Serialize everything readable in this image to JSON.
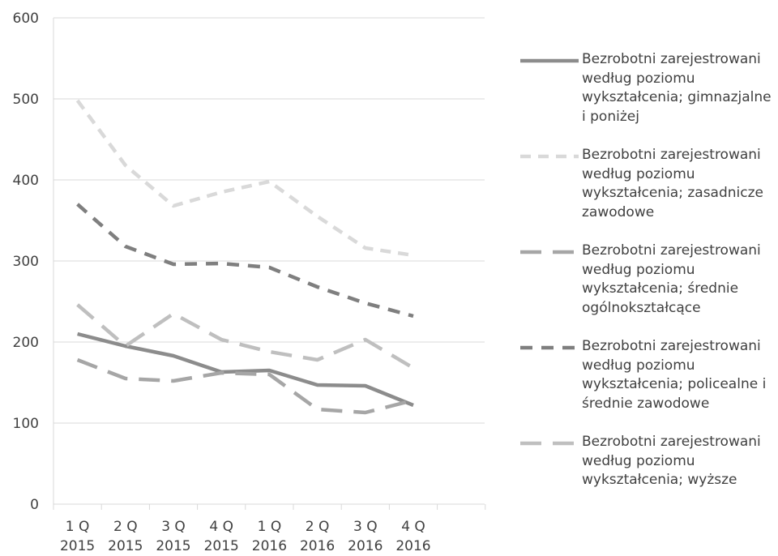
{
  "chart_data": {
    "type": "line",
    "categories": [
      [
        "1 Q",
        "2015"
      ],
      [
        "2 Q",
        "2015"
      ],
      [
        "3 Q",
        "2015"
      ],
      [
        "4 Q",
        "2015"
      ],
      [
        "1 Q",
        "2016"
      ],
      [
        "2 Q",
        "2016"
      ],
      [
        "3 Q",
        "2016"
      ],
      [
        "4 Q",
        "2016"
      ]
    ],
    "ylim": [
      0,
      600
    ],
    "yticks": [
      0,
      100,
      200,
      300,
      400,
      500,
      600
    ],
    "grid": true,
    "legend_position": "right",
    "series": [
      {
        "name": "Bezrobotni zarejestrowani według poziomu wykształcenia; gimnazjalne i poniżej",
        "values": [
          210,
          195,
          183,
          163,
          165,
          147,
          146,
          122
        ],
        "color": "#8c8c8c",
        "dash": "solid"
      },
      {
        "name": "Bezrobotni zarejestrowani według poziomu wykształcenia; zasadnicze zawodowe",
        "values": [
          498,
          418,
          368,
          385,
          398,
          355,
          316,
          307
        ],
        "color": "#d9d9d9",
        "dash": "short-dash"
      },
      {
        "name": "Bezrobotni zarejestrowani według poziomu wykształcenia; średnie ogólnokształcące",
        "values": [
          178,
          155,
          152,
          162,
          160,
          117,
          113,
          128
        ],
        "color": "#a6a6a6",
        "dash": "long-dash"
      },
      {
        "name": "Bezrobotni zarejestrowani według poziomu wykształcenia; policealne i średnie zawodowe",
        "values": [
          370,
          318,
          296,
          297,
          292,
          268,
          248,
          232
        ],
        "color": "#7f7f7f",
        "dash": "dash"
      },
      {
        "name": "Bezrobotni zarejestrowani według poziomu wykształcenia; wyższe",
        "values": [
          246,
          195,
          235,
          203,
          188,
          178,
          203,
          168
        ],
        "color": "#bfbfbf",
        "dash": "long-dash"
      }
    ]
  }
}
